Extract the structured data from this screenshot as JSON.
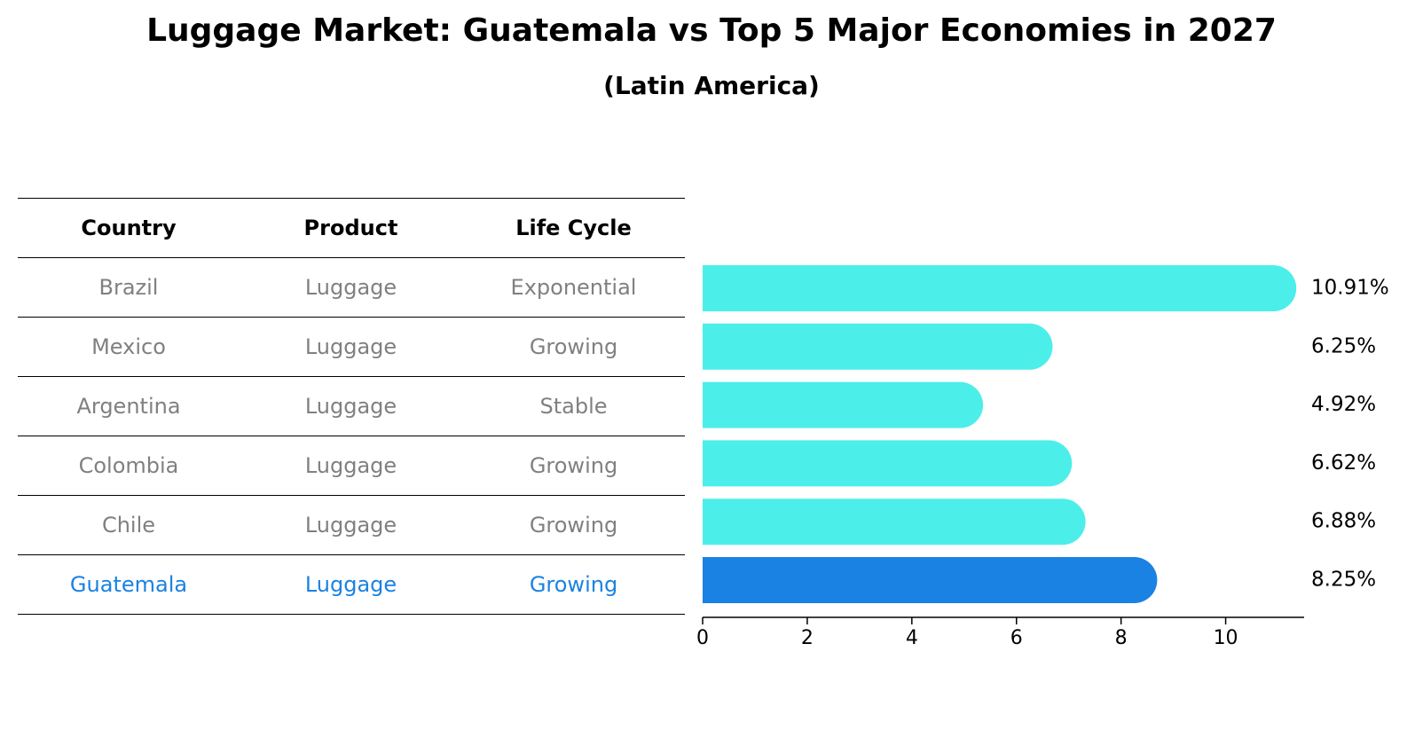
{
  "title": "Luggage Market: Guatemala vs Top 5 Major Economies in 2027",
  "subtitle": "(Latin America)",
  "table": {
    "headers": [
      "Country",
      "Product",
      "Life Cycle"
    ],
    "rows": [
      {
        "country": "Brazil",
        "product": "Luggage",
        "life_cycle": "Exponential"
      },
      {
        "country": "Mexico",
        "product": "Luggage",
        "life_cycle": "Growing"
      },
      {
        "country": "Argentina",
        "product": "Luggage",
        "life_cycle": "Stable"
      },
      {
        "country": "Colombia",
        "product": "Luggage",
        "life_cycle": "Growing"
      },
      {
        "country": "Chile",
        "product": "Luggage",
        "life_cycle": "Growing"
      },
      {
        "country": "Guatemala",
        "product": "Luggage",
        "life_cycle": "Growing"
      }
    ]
  },
  "colors": {
    "bar": "#4ceeea",
    "highlight": "#1a82e2",
    "muted_text": "#808080"
  },
  "chart_data": {
    "type": "bar",
    "orientation": "horizontal",
    "categories": [
      "Brazil",
      "Mexico",
      "Argentina",
      "Colombia",
      "Chile",
      "Guatemala"
    ],
    "values": [
      10.91,
      6.25,
      4.92,
      6.62,
      6.88,
      8.25
    ],
    "value_labels": [
      "10.91%",
      "6.25%",
      "4.92%",
      "6.62%",
      "6.88%",
      "8.25%"
    ],
    "highlight_category": "Guatemala",
    "xlim": [
      0,
      11.5
    ],
    "xticks": [
      0,
      2,
      4,
      6,
      8,
      10
    ],
    "title": "Luggage Market: Guatemala vs Top 5 Major Economies in 2027",
    "subtitle": "(Latin America)",
    "xlabel": "",
    "ylabel": ""
  }
}
